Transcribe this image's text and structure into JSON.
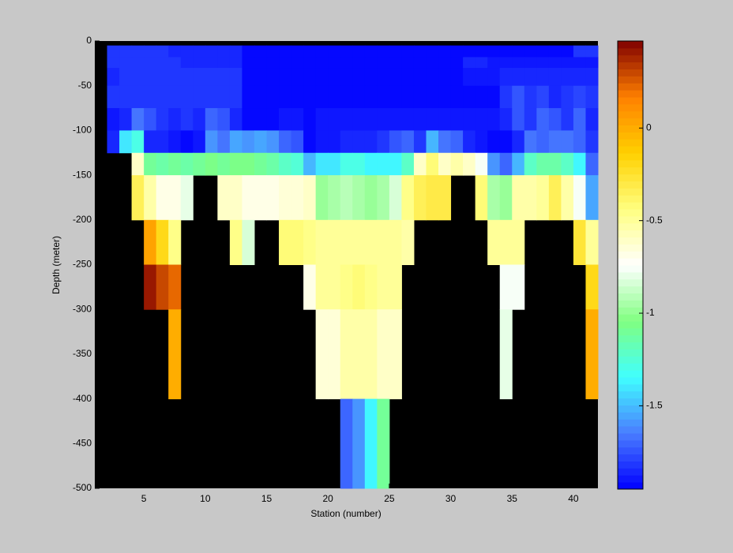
{
  "chart_data": {
    "type": "heatmap",
    "xlabel": "Station (number)",
    "ylabel": "Depth (meter)",
    "xlim": [
      1,
      42
    ],
    "ylim": [
      -500,
      0
    ],
    "xticks": [
      5,
      10,
      15,
      20,
      25,
      30,
      35,
      40
    ],
    "yticks": [
      0,
      -50,
      -100,
      -150,
      -200,
      -250,
      -300,
      -350,
      -400,
      -450,
      -500
    ],
    "clim": [
      -1.95,
      0.47
    ],
    "cticks": [
      0,
      -0.5,
      -1,
      -1.5
    ],
    "colormap": [
      "#0000ff",
      "#4a7dff",
      "#40ffff",
      "#80ff80",
      "#ffffff",
      "#ffff80",
      "#ffd000",
      "#ff8000",
      "#800000"
    ],
    "x_edges": [
      2,
      3,
      4,
      5,
      6,
      7,
      8,
      9,
      10,
      11,
      12,
      13,
      14,
      15,
      16,
      17,
      18,
      19,
      20,
      21,
      22,
      23,
      24,
      25,
      26,
      27,
      28,
      29,
      30,
      31,
      32,
      33,
      34,
      35,
      36,
      37,
      38,
      39,
      40,
      41,
      42
    ],
    "y_edges": [
      -5,
      -18,
      -30,
      -50,
      -75,
      -100,
      -125,
      -150,
      -200,
      -250,
      -300,
      -400,
      -500
    ],
    "z": [
      [
        -1.8,
        -1.8,
        -1.8,
        -1.8,
        -1.8,
        -1.85,
        -1.85,
        -1.85,
        -1.85,
        -1.85,
        -1.85,
        -1.92,
        -1.92,
        -1.92,
        -1.92,
        -1.92,
        -1.92,
        -1.92,
        -1.92,
        -1.92,
        -1.92,
        -1.92,
        -1.92,
        -1.92,
        -1.92,
        -1.92,
        -1.92,
        -1.92,
        -1.92,
        -1.92,
        -1.92,
        -1.92,
        -1.92,
        -1.92,
        -1.92,
        -1.92,
        -1.92,
        -1.92,
        -1.8,
        -1.8
      ],
      [
        -1.8,
        -1.8,
        -1.8,
        -1.8,
        -1.8,
        -1.8,
        -1.85,
        -1.85,
        -1.85,
        -1.85,
        -1.85,
        -1.92,
        -1.92,
        -1.92,
        -1.92,
        -1.92,
        -1.92,
        -1.92,
        -1.92,
        -1.92,
        -1.92,
        -1.92,
        -1.92,
        -1.92,
        -1.92,
        -1.92,
        -1.92,
        -1.92,
        -1.92,
        -1.85,
        -1.85,
        -1.88,
        -1.88,
        -1.88,
        -1.88,
        -1.88,
        -1.88,
        -1.88,
        -1.88,
        -1.88
      ],
      [
        -1.85,
        -1.8,
        -1.8,
        -1.8,
        -1.8,
        -1.8,
        -1.82,
        -1.82,
        -1.82,
        -1.82,
        -1.82,
        -1.92,
        -1.92,
        -1.92,
        -1.92,
        -1.92,
        -1.92,
        -1.92,
        -1.92,
        -1.92,
        -1.92,
        -1.92,
        -1.92,
        -1.92,
        -1.92,
        -1.92,
        -1.92,
        -1.92,
        -1.92,
        -1.88,
        -1.88,
        -1.88,
        -1.84,
        -1.84,
        -1.84,
        -1.84,
        -1.84,
        -1.84,
        -1.84,
        -1.84
      ],
      [
        -1.8,
        -1.8,
        -1.8,
        -1.8,
        -1.8,
        -1.8,
        -1.82,
        -1.82,
        -1.82,
        -1.82,
        -1.82,
        -1.92,
        -1.92,
        -1.92,
        -1.92,
        -1.92,
        -1.92,
        -1.92,
        -1.92,
        -1.92,
        -1.92,
        -1.92,
        -1.92,
        -1.92,
        -1.92,
        -1.92,
        -1.92,
        -1.92,
        -1.92,
        -1.92,
        -1.92,
        -1.92,
        -1.8,
        -1.75,
        -1.82,
        -1.78,
        -1.85,
        -1.8,
        -1.78,
        -1.82
      ],
      [
        -1.9,
        -1.85,
        -1.65,
        -1.75,
        -1.8,
        -1.85,
        -1.8,
        -1.85,
        -1.7,
        -1.75,
        -1.85,
        -1.95,
        -1.95,
        -1.95,
        -1.9,
        -1.9,
        -1.92,
        -1.88,
        -1.88,
        -1.9,
        -1.9,
        -1.9,
        -1.9,
        -1.9,
        -1.9,
        -1.9,
        -1.9,
        -1.9,
        -1.9,
        -1.9,
        -1.9,
        -1.9,
        -1.85,
        -1.75,
        -1.8,
        -1.7,
        -1.75,
        -1.8,
        -1.7,
        -1.85
      ],
      [
        -1.85,
        -1.4,
        -1.3,
        -1.85,
        -1.85,
        -1.9,
        -1.95,
        -1.9,
        -1.6,
        -1.65,
        -1.55,
        -1.6,
        -1.55,
        -1.6,
        -1.7,
        -1.75,
        -1.95,
        -1.9,
        -1.9,
        -1.85,
        -1.85,
        -1.85,
        -1.8,
        -1.75,
        -1.7,
        -1.8,
        -1.5,
        -1.65,
        -1.7,
        -1.85,
        -1.9,
        -1.95,
        -1.95,
        -1.85,
        -1.65,
        -1.7,
        -1.65,
        -1.65,
        -1.7,
        -1.8
      ],
      [
        null,
        null,
        -0.6,
        -1.1,
        -1.15,
        -1.1,
        -1.15,
        -1.1,
        -1.05,
        -1.1,
        -1.05,
        -1.05,
        -1.1,
        -1.15,
        -1.2,
        -1.25,
        -1.5,
        -1.4,
        -1.4,
        -1.3,
        -1.3,
        -1.35,
        -1.35,
        -1.35,
        -1.2,
        -0.6,
        -0.4,
        -0.6,
        -0.55,
        -0.6,
        -0.75,
        -1.6,
        -1.7,
        -1.5,
        -1.2,
        -1.15,
        -1.15,
        -1.2,
        -1.35,
        -1.7
      ],
      [
        null,
        null,
        -0.35,
        -0.55,
        -0.7,
        -0.7,
        -0.8,
        null,
        null,
        -0.6,
        -0.6,
        -0.7,
        -0.7,
        -0.7,
        -0.65,
        -0.65,
        -0.6,
        -1.0,
        -0.95,
        -0.9,
        -0.95,
        -1.0,
        -0.95,
        -0.85,
        -0.45,
        -0.35,
        -0.3,
        -0.3,
        null,
        null,
        -0.4,
        -0.95,
        -1.0,
        -0.55,
        -0.55,
        -0.5,
        -0.35,
        -0.55,
        -0.75,
        -1.55
      ],
      [
        null,
        null,
        null,
        0.05,
        -0.2,
        -0.45,
        null,
        null,
        null,
        null,
        -0.45,
        -0.85,
        null,
        null,
        -0.4,
        -0.4,
        -0.45,
        -0.5,
        -0.5,
        -0.5,
        -0.5,
        -0.5,
        -0.5,
        -0.5,
        -0.55,
        null,
        null,
        null,
        null,
        null,
        null,
        -0.5,
        -0.5,
        -0.5,
        null,
        null,
        null,
        null,
        -0.25,
        -0.5
      ],
      [
        null,
        null,
        null,
        0.42,
        0.3,
        0.22,
        null,
        null,
        null,
        null,
        null,
        null,
        null,
        null,
        null,
        null,
        -0.7,
        -0.5,
        -0.5,
        -0.45,
        -0.4,
        -0.45,
        -0.5,
        -0.5,
        null,
        null,
        null,
        null,
        null,
        null,
        null,
        null,
        -0.75,
        -0.75,
        null,
        null,
        null,
        null,
        null,
        -0.2
      ],
      [
        null,
        null,
        null,
        null,
        null,
        0.0,
        null,
        null,
        null,
        null,
        null,
        null,
        null,
        null,
        null,
        null,
        null,
        -0.65,
        -0.65,
        -0.55,
        -0.55,
        -0.55,
        -0.6,
        -0.6,
        null,
        null,
        null,
        null,
        null,
        null,
        null,
        null,
        -0.8,
        null,
        null,
        null,
        null,
        null,
        null,
        0.0
      ],
      [
        null,
        null,
        null,
        null,
        null,
        null,
        null,
        null,
        null,
        null,
        null,
        null,
        null,
        null,
        null,
        null,
        null,
        null,
        null,
        -1.7,
        -1.6,
        -1.35,
        -1.1,
        null,
        null,
        null,
        null,
        null,
        null,
        null,
        null,
        null,
        null,
        null,
        null,
        null,
        null,
        null,
        null,
        null
      ]
    ]
  }
}
